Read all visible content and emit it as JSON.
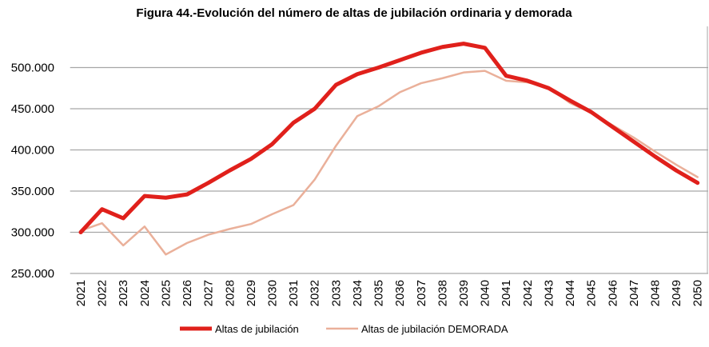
{
  "chart_data": {
    "type": "line",
    "title": "Figura 44.-Evolución del número de altas de jubilación ordinaria y demorada",
    "xlabel": "",
    "ylabel": "",
    "categories": [
      "2021",
      "2022",
      "2023",
      "2024",
      "2025",
      "2026",
      "2027",
      "2028",
      "2029",
      "2030",
      "2031",
      "2032",
      "2033",
      "2034",
      "2035",
      "2036",
      "2037",
      "2038",
      "2039",
      "2040",
      "2041",
      "2042",
      "2043",
      "2044",
      "2045",
      "2046",
      "2047",
      "2048",
      "2049",
      "2050"
    ],
    "ylim": [
      250000,
      550000
    ],
    "yticks": [
      250000,
      300000,
      350000,
      400000,
      450000,
      500000
    ],
    "ytick_labels": [
      "250.000",
      "300.000",
      "350.000",
      "400.000",
      "450.000",
      "500.000"
    ],
    "grid": true,
    "legend_position": "bottom",
    "series": [
      {
        "name": "Altas de jubilación",
        "color": "#e0201b",
        "values": [
          300000,
          328000,
          317000,
          344000,
          342000,
          346000,
          360000,
          375000,
          389000,
          407000,
          433000,
          450000,
          479000,
          492000,
          500000,
          509000,
          518000,
          525000,
          529000,
          524000,
          490000,
          484000,
          475000,
          460000,
          446000,
          428000,
          410000,
          392000,
          375000,
          360000
        ]
      },
      {
        "name": "Altas de jubilación DEMORADA",
        "color": "#eab09a",
        "values": [
          302000,
          311000,
          284000,
          307000,
          273000,
          287000,
          297000,
          304000,
          310000,
          322000,
          333000,
          364000,
          405000,
          441000,
          453000,
          470000,
          481000,
          487000,
          494000,
          496000,
          484000,
          482000,
          476000,
          457000,
          445000,
          430000,
          415000,
          398000,
          382000,
          367000
        ]
      }
    ]
  }
}
